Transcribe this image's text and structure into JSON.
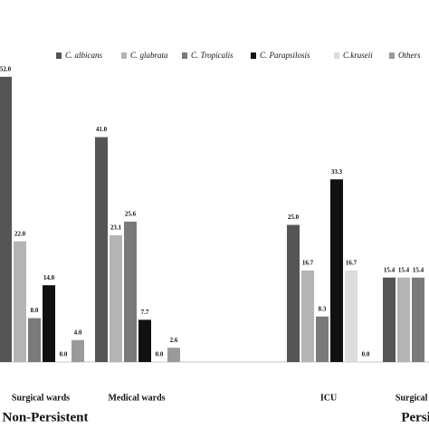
{
  "chart_data": {
    "type": "bar",
    "categories": [
      "Surgical wards",
      "Medical wards",
      null,
      "ICU",
      "Surgical wards"
    ],
    "groups": [
      "Non-Persistent",
      "Persistent"
    ],
    "ylim": [
      0,
      66
    ],
    "series": [
      {
        "name": "C. albicans",
        "color": "#555555",
        "values": [
          52.0,
          41.0,
          null,
          25.0,
          15.4
        ],
        "value_labels": [
          "52.0",
          "41.0",
          null,
          "25.0",
          "15.4"
        ]
      },
      {
        "name": "C. glabrata",
        "color": "#b4b4b4",
        "values": [
          22.0,
          23.1,
          null,
          16.7,
          15.4
        ],
        "value_labels": [
          "22.0",
          "23.1",
          null,
          "16.7",
          "15.4"
        ]
      },
      {
        "name": "C. Tropicalis",
        "color": "#7a7a7a",
        "values": [
          8.0,
          25.6,
          null,
          8.3,
          15.4
        ],
        "value_labels": [
          "8.0",
          "25.6",
          null,
          "8.3",
          "15.4"
        ]
      },
      {
        "name": "C. Parapsilosis",
        "color": "#111111",
        "values": [
          14.0,
          7.7,
          null,
          33.3,
          null
        ],
        "value_labels": [
          "14.0",
          "7.7",
          null,
          "33.3",
          null
        ]
      },
      {
        "name": "C.kruseii",
        "color": "#dcdcdc",
        "values": [
          0.0,
          0.0,
          null,
          16.7,
          null
        ],
        "value_labels": [
          "0.0",
          "0.0",
          null,
          "16.7",
          null
        ]
      },
      {
        "name": "Others",
        "color": "#9a9a9a",
        "values": [
          4.0,
          2.6,
          null,
          0.0,
          null
        ],
        "value_labels": [
          "4.0",
          "2.6",
          null,
          "0.0",
          null
        ]
      }
    ]
  }
}
